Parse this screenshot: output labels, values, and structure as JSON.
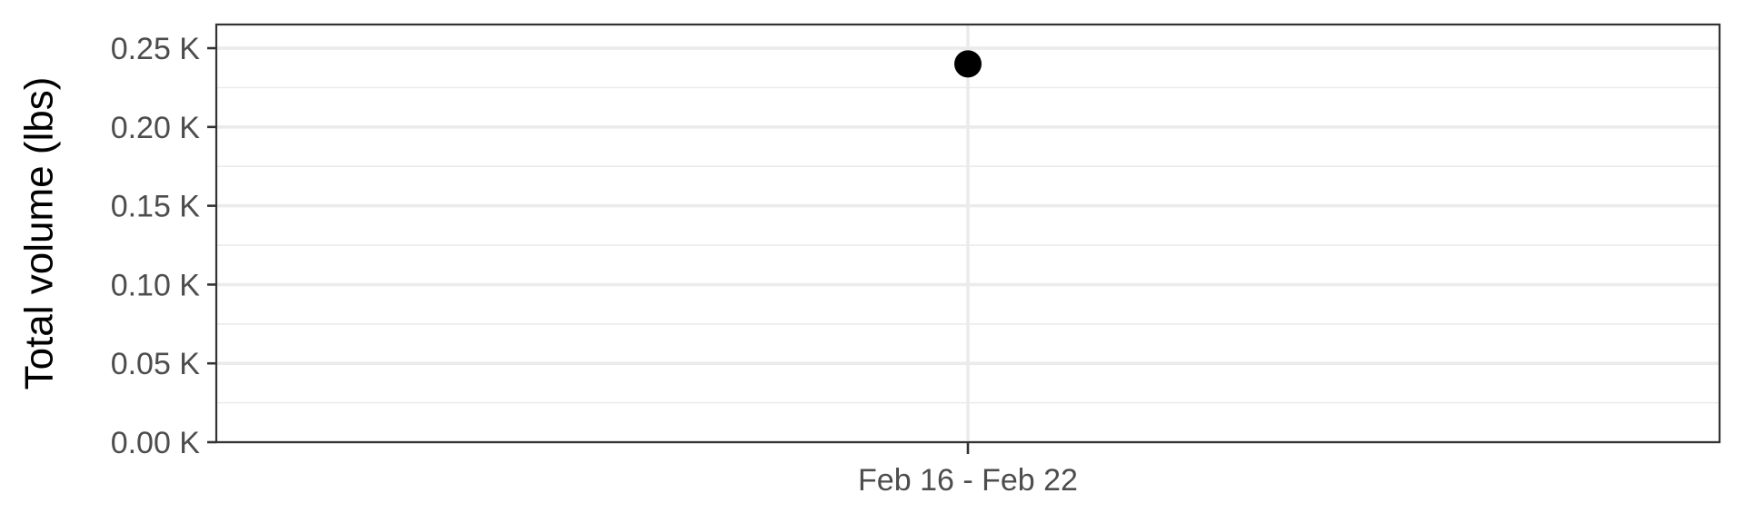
{
  "chart_data": {
    "type": "scatter",
    "title": "",
    "xlabel": "",
    "ylabel": "Total volume (lbs)",
    "categories": [
      "Feb 16 - Feb 22"
    ],
    "values": [
      240
    ],
    "y_ticks": [
      0,
      50,
      100,
      150,
      200,
      250
    ],
    "y_tick_labels": [
      "0.00 K",
      "0.05 K",
      "0.10 K",
      "0.15 K",
      "0.20 K",
      "0.25 K"
    ],
    "ylim": [
      0,
      265
    ],
    "grid": true,
    "legend": "none",
    "colors": {
      "point": "#000000",
      "grid": "#ebebeb",
      "panel_border": "#333333",
      "tick_label": "#4d4d4d"
    }
  }
}
